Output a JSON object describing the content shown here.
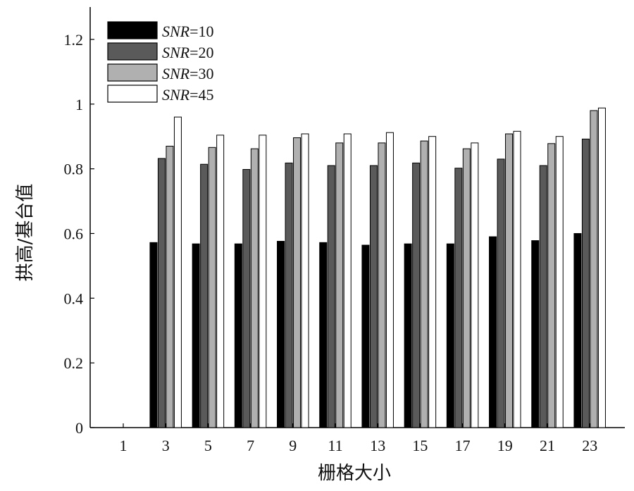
{
  "chart_data": {
    "type": "bar",
    "title": "",
    "xlabel": "栅格大小",
    "ylabel": "拱高/基台值",
    "categories": [
      "1",
      "3",
      "5",
      "7",
      "9",
      "11",
      "13",
      "15",
      "17",
      "19",
      "21",
      "23"
    ],
    "ylim": [
      0,
      1.3
    ],
    "yticks": [
      "0",
      "0.2",
      "0.4",
      "0.6",
      "0.8",
      "1",
      "1.2"
    ],
    "ytick_values": [
      0,
      0.2,
      0.4,
      0.6,
      0.8,
      1.0,
      1.2
    ],
    "grid": false,
    "legend_position": "top-left",
    "series": [
      {
        "name": "SNR=10",
        "name_italic": "SNR",
        "name_suffix": "=10",
        "color": "#000000",
        "values": [
          null,
          0.572,
          0.568,
          0.568,
          0.576,
          0.572,
          0.564,
          0.568,
          0.568,
          0.59,
          0.578,
          0.6
        ]
      },
      {
        "name": "SNR=20",
        "name_italic": "SNR",
        "name_suffix": "=20",
        "color": "#5a5a5a",
        "values": [
          null,
          0.832,
          0.814,
          0.798,
          0.818,
          0.81,
          0.81,
          0.818,
          0.802,
          0.83,
          0.81,
          0.892
        ]
      },
      {
        "name": "SNR=30",
        "name_italic": "SNR",
        "name_suffix": "=30",
        "color": "#b0b0b0",
        "values": [
          null,
          0.87,
          0.866,
          0.862,
          0.896,
          0.88,
          0.88,
          0.886,
          0.862,
          0.908,
          0.878,
          0.98
        ]
      },
      {
        "name": "SNR=45",
        "name_italic": "SNR",
        "name_suffix": "=45",
        "color": "#ffffff",
        "values": [
          null,
          0.96,
          0.904,
          0.904,
          0.908,
          0.908,
          0.912,
          0.9,
          0.88,
          0.916,
          0.9,
          0.988
        ]
      }
    ]
  }
}
